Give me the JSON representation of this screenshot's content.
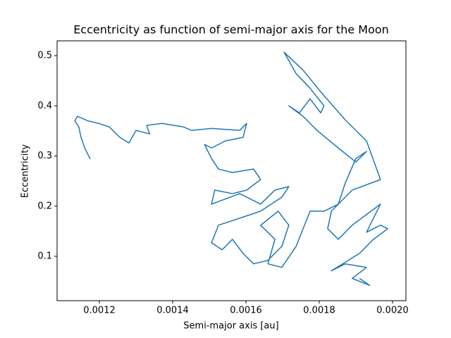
{
  "chart_data": {
    "type": "line",
    "title": "Eccentricity as function of semi-major axis for the Moon",
    "xlabel": "Semi-major axis [au]",
    "ylabel": "Eccentricity",
    "color": "#1f77b4",
    "xlim": [
      0.0010846,
      0.0020365
    ],
    "ylim": [
      0.0116,
      0.5295
    ],
    "xticks": [
      0.0012,
      0.0014,
      0.0016,
      0.0018,
      {
        "value": 0.002,
        "label": "0.0020"
      }
    ],
    "yticks": [
      0.1,
      0.2,
      0.3,
      0.4,
      0.5
    ],
    "x": [
      0.001175,
      0.00116,
      0.00115,
      0.001144,
      0.001133,
      0.00114,
      0.001169,
      0.001198,
      0.001227,
      0.001256,
      0.001281,
      0.0013,
      0.001337,
      0.001329,
      0.001371,
      0.001429,
      0.001452,
      0.001506,
      0.001583,
      0.001602,
      0.001592,
      0.001544,
      0.001506,
      0.001487,
      0.001506,
      0.001525,
      0.001563,
      0.001621,
      0.00164,
      0.001602,
      0.001563,
      0.001515,
      0.001506,
      0.001583,
      0.00164,
      0.001679,
      0.001717,
      0.001698,
      0.00164,
      0.001583,
      0.001525,
      0.001506,
      0.001535,
      0.001563,
      0.001592,
      0.001621,
      0.00166,
      0.001698,
      0.001717,
      0.001688,
      0.00164,
      0.001679,
      0.00166,
      0.001698,
      0.001737,
      0.001775,
      0.001813,
      0.001852,
      0.001871,
      0.0019,
      0.001929,
      0.0019,
      0.001852,
      0.001794,
      0.001756,
      0.001717,
      0.001746,
      0.001775,
      0.001804,
      0.001813,
      0.001775,
      0.001737,
      0.001704,
      0.001756,
      0.001804,
      0.001871,
      0.001929,
      0.001967,
      0.00189,
      0.001833,
      0.001823,
      0.001852,
      0.00189,
      0.001967,
      0.001929,
      0.001967,
      0.001987,
      0.001948,
      0.00191,
      0.001833,
      0.001871,
      0.001929,
      0.00189,
      0.001938,
      0.00191
    ],
    "values": [
      0.294,
      0.316,
      0.337,
      0.358,
      0.37,
      0.379,
      0.37,
      0.365,
      0.358,
      0.337,
      0.326,
      0.351,
      0.344,
      0.361,
      0.365,
      0.358,
      0.351,
      0.355,
      0.351,
      0.365,
      0.337,
      0.33,
      0.316,
      0.323,
      0.295,
      0.274,
      0.267,
      0.274,
      0.253,
      0.232,
      0.225,
      0.232,
      0.204,
      0.225,
      0.204,
      0.232,
      0.239,
      0.218,
      0.19,
      0.176,
      0.162,
      0.127,
      0.113,
      0.134,
      0.106,
      0.085,
      0.092,
      0.12,
      0.162,
      0.19,
      0.162,
      0.134,
      0.085,
      0.078,
      0.12,
      0.19,
      0.19,
      0.204,
      0.246,
      0.295,
      0.309,
      0.288,
      0.316,
      0.351,
      0.379,
      0.4,
      0.386,
      0.414,
      0.386,
      0.4,
      0.435,
      0.464,
      0.507,
      0.471,
      0.428,
      0.372,
      0.33,
      0.253,
      0.232,
      0.19,
      0.155,
      0.134,
      0.162,
      0.204,
      0.148,
      0.162,
      0.155,
      0.134,
      0.106,
      0.071,
      0.085,
      0.078,
      0.056,
      0.042,
      0.056
    ]
  }
}
